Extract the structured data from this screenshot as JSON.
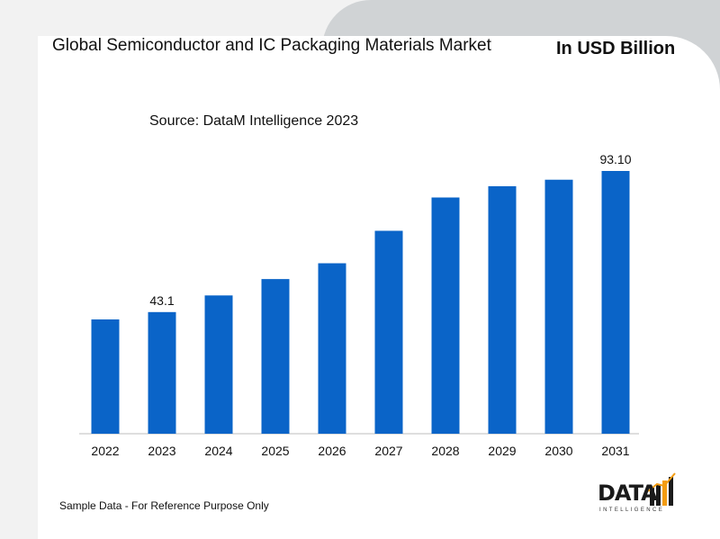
{
  "header": {
    "title": "Global Semiconductor and IC Packaging Materials Market",
    "unit": "In USD Billion",
    "source": "Source: DataM Intelligence 2023"
  },
  "footer": {
    "note": "Sample Data - For Reference Purpose Only"
  },
  "logo": {
    "word": "DATA",
    "sub": "INTELLIGENCE"
  },
  "colors": {
    "bar": "#0a64c8",
    "background": "#f2f2f2",
    "card": "#ffffff",
    "accent_tab": "#d0d3d5",
    "logo_orange": "#f39c12"
  },
  "chart_data": {
    "type": "bar",
    "title": "Global Semiconductor and IC Packaging Materials Market",
    "ylabel": "",
    "xlabel": "",
    "categories": [
      "2022",
      "2023",
      "2024",
      "2025",
      "2026",
      "2027",
      "2028",
      "2029",
      "2030",
      "2031"
    ],
    "values": [
      40.5,
      43.1,
      49.0,
      54.8,
      60.4,
      71.9,
      83.7,
      87.7,
      90.0,
      93.1
    ],
    "data_labels": [
      "",
      "43.1",
      "",
      "",
      "",
      "",
      "",
      "",
      "",
      "93.10"
    ],
    "ylim": [
      0,
      95
    ],
    "grid": false,
    "legend": "none"
  }
}
